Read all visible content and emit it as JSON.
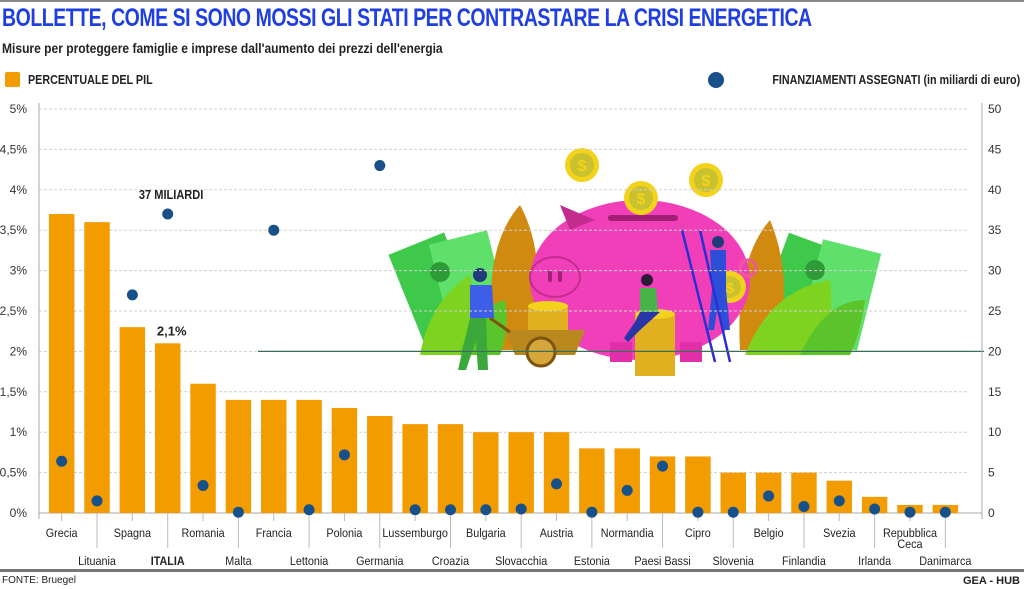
{
  "header": {
    "title": "BOLLETTE, COME SI SONO MOSSI GLI STATI PER CONTRASTARE LA CRISI ENERGETICA",
    "subtitle": "Misure per proteggere famiglie e imprese dall'aumento dei prezzi dell'energia"
  },
  "footer": {
    "source": "FONTE:  Bruegel",
    "credit": "GEA - HUB"
  },
  "colors": {
    "title": "#1f3fe0",
    "bar": "#f29c00",
    "dot": "#18508a",
    "grid": "#cfcfcf"
  },
  "chart_data": {
    "type": "bar",
    "title": "BOLLETTE, COME SI SONO MOSSI GLI STATI PER CONTRASTARE LA CRISI ENERGETICA",
    "subtitle": "Misure per proteggere famiglie e imprese dall'aumento dei prezzi dell'energia",
    "legend": [
      "PERCENTUALE DEL PIL",
      "FINANZIAMENTI ASSEGNATI (in miliardi di euro)"
    ],
    "legend_placement": "top",
    "categories": [
      "Grecia",
      "Lituania",
      "Spagna",
      "ITALIA",
      "Romania",
      "Malta",
      "Francia",
      "Lettonia",
      "Polonia",
      "Germania",
      "Lussemburgo",
      "Croazia",
      "Bulgaria",
      "Slovacchia",
      "Austria",
      "Estonia",
      "Normandia",
      "Paesi Bassi",
      "Cipro",
      "Slovenia",
      "Belgio",
      "Finlandia",
      "Svezia",
      "Irlanda",
      "Repubblica Ceca",
      "Danimarca"
    ],
    "highlight_category": "ITALIA",
    "series": [
      {
        "name": "PERCENTUALE DEL PIL",
        "type": "bar",
        "axis": "left",
        "values": [
          3.7,
          3.6,
          2.3,
          2.1,
          1.6,
          1.4,
          1.4,
          1.4,
          1.3,
          1.2,
          1.1,
          1.1,
          1.0,
          1.0,
          1.0,
          0.8,
          0.8,
          0.7,
          0.7,
          0.5,
          0.5,
          0.5,
          0.4,
          0.2,
          0.1,
          0.1
        ]
      },
      {
        "name": "FINANZIAMENTI ASSEGNATI (in miliardi di euro)",
        "type": "scatter",
        "axis": "right",
        "values": [
          6.4,
          1.5,
          27,
          37,
          3.4,
          0.1,
          35,
          0.4,
          7.2,
          43,
          0.4,
          0.4,
          0.4,
          0.5,
          3.6,
          0.1,
          2.8,
          5.8,
          0.1,
          0.1,
          2.1,
          0.8,
          1.5,
          0.5,
          0.1,
          0.1
        ]
      }
    ],
    "annotations": [
      {
        "category": "ITALIA",
        "series": "PERCENTUALE DEL PIL",
        "text": "2,1%"
      },
      {
        "category": "ITALIA",
        "series": "FINANZIAMENTI ASSEGNATI (in miliardi di euro)",
        "text": "37 MILIARDI"
      }
    ],
    "y_left": {
      "min": 0,
      "max": 5,
      "ticks": [
        "0%",
        "0,5%",
        "1%",
        "1,5%",
        "2%",
        "2,5%",
        "3%",
        "3,5%",
        "4%",
        "4,5%",
        "5%"
      ]
    },
    "y_right": {
      "min": 0,
      "max": 50,
      "ticks": [
        "0",
        "5",
        "10",
        "15",
        "20",
        "25",
        "30",
        "35",
        "40",
        "45",
        "50"
      ]
    },
    "grid": true
  }
}
